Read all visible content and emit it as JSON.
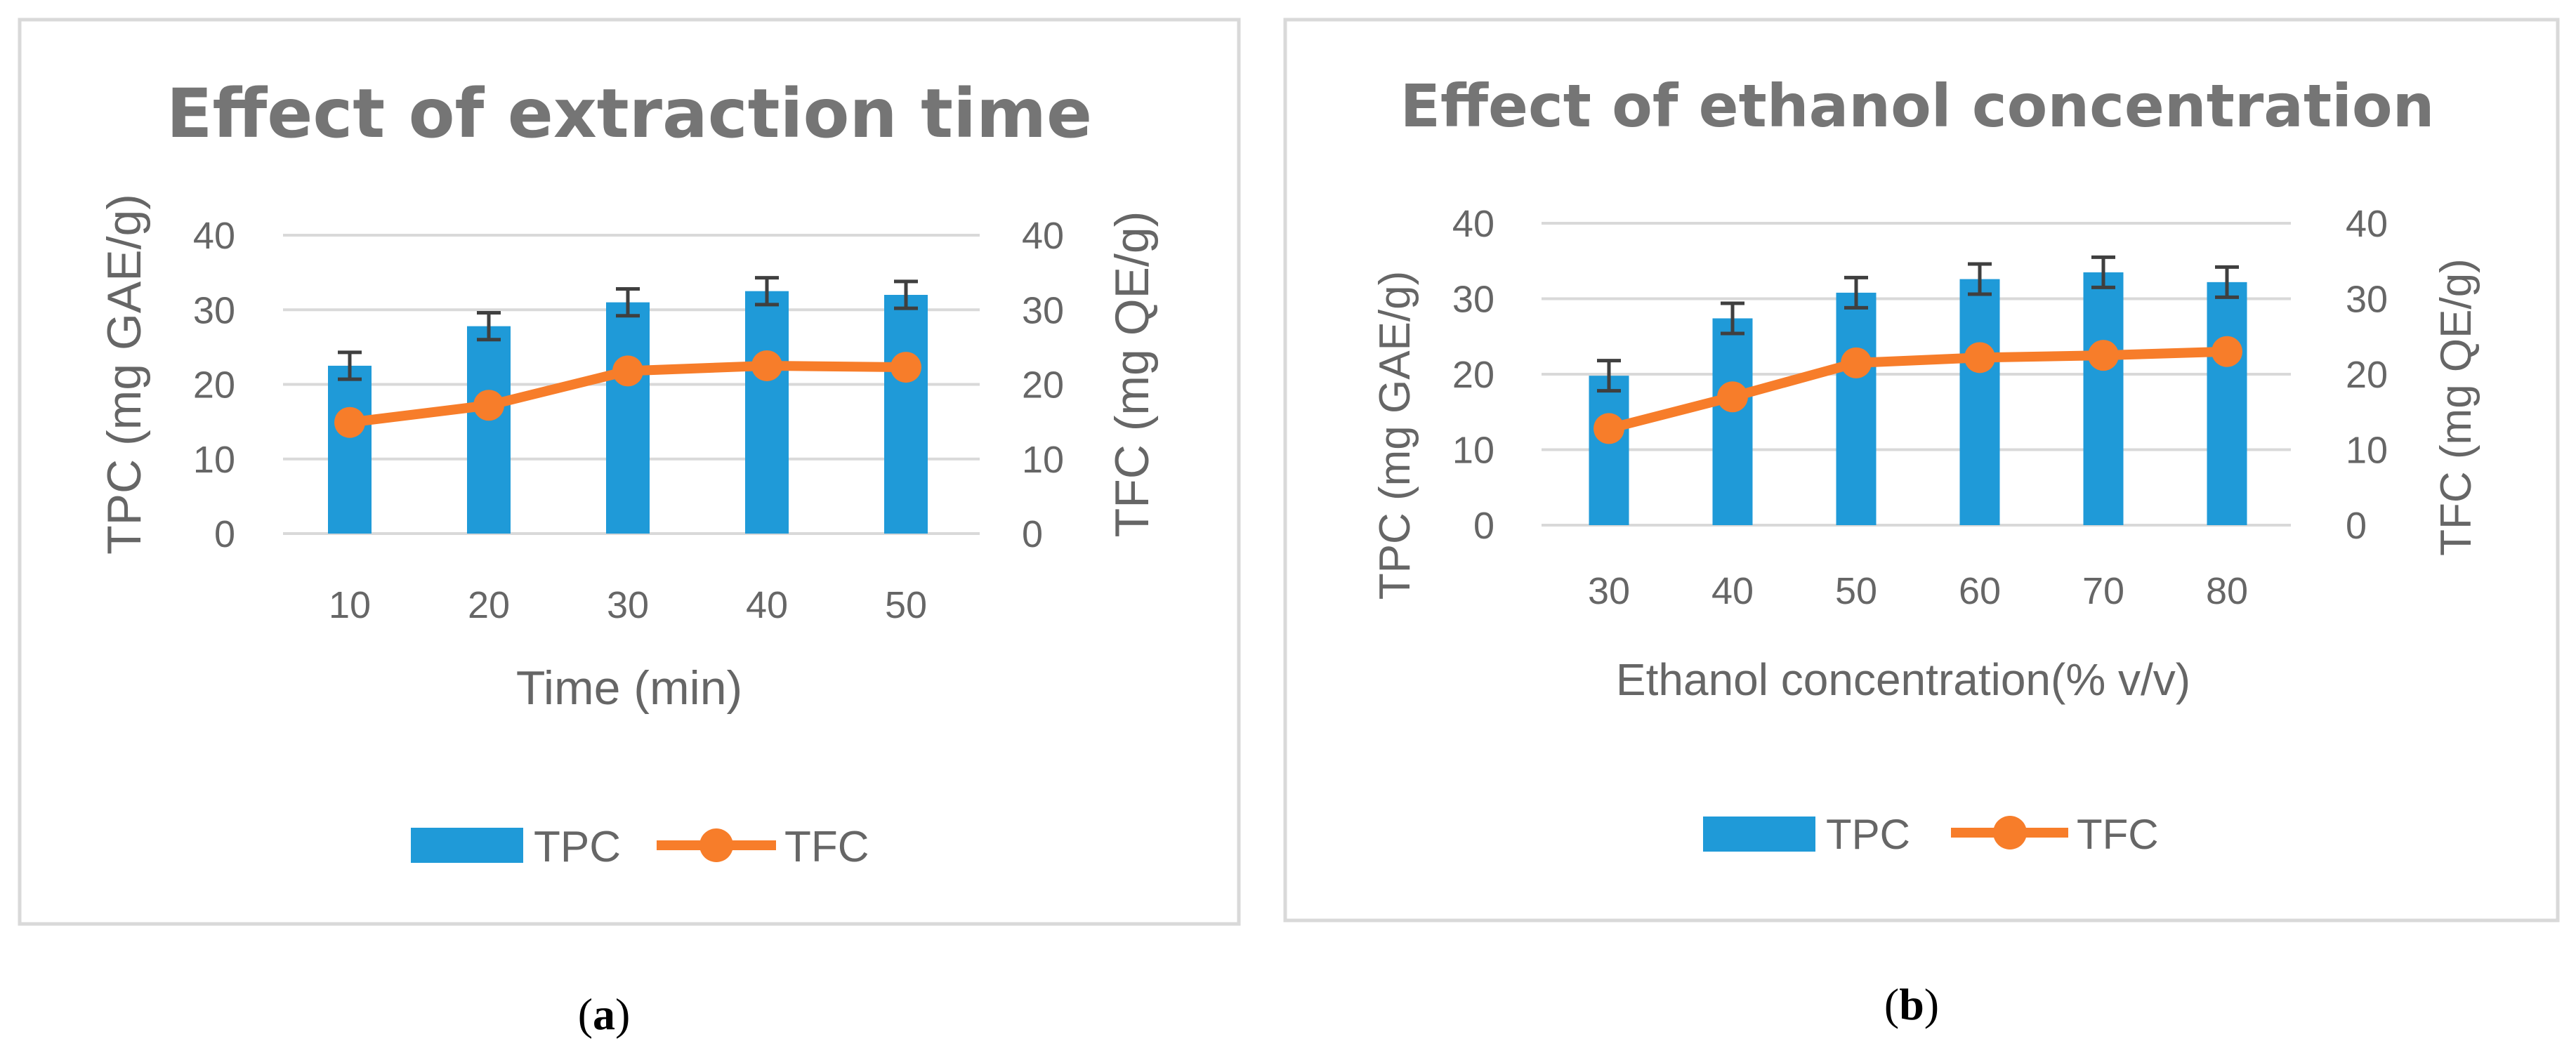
{
  "colors": {
    "bar": "#1f9ad8",
    "line": "#f77d2a",
    "grid": "#d9d9d9",
    "text": "#666666",
    "title": "#757575",
    "error": "#3f3f3f",
    "border": "#d9d9d9"
  },
  "chart_data": [
    {
      "type": "bar+line",
      "title": "Effect of extraction time",
      "xlabel": "Time (min)",
      "ylabel_left": "TPC (mg GAE/g)",
      "ylabel_right": "TFC (mg QE/g)",
      "categories": [
        "10",
        "20",
        "30",
        "40",
        "50"
      ],
      "ylim": [
        0,
        40
      ],
      "yticks": [
        "0",
        "10",
        "20",
        "30",
        "40"
      ],
      "series": [
        {
          "name": "TPC",
          "kind": "bar",
          "axis": "left",
          "values": [
            22.5,
            27.8,
            31.0,
            32.5,
            32.0
          ],
          "errors": [
            1.8,
            1.8,
            1.8,
            1.8,
            1.8
          ]
        },
        {
          "name": "TFC",
          "kind": "line",
          "axis": "right",
          "values": [
            14.9,
            17.2,
            21.8,
            22.5,
            22.3
          ]
        }
      ],
      "legend": [
        "TPC",
        "TFC"
      ],
      "legend_position": "bottom",
      "caption_paren_open": "(",
      "caption_letter": "a",
      "caption_paren_close": ")"
    },
    {
      "type": "bar+line",
      "title": "Effect of ethanol concentration",
      "xlabel": "Ethanol concentration(% v/v)",
      "ylabel_left": "TPC (mg GAE/g)",
      "ylabel_right": "TFC (mg QE/g)",
      "categories": [
        "30",
        "40",
        "50",
        "60",
        "70",
        "80"
      ],
      "ylim": [
        0,
        40
      ],
      "yticks": [
        "0",
        "10",
        "20",
        "30",
        "40"
      ],
      "series": [
        {
          "name": "TPC",
          "kind": "bar",
          "axis": "left",
          "values": [
            19.8,
            27.4,
            30.8,
            32.6,
            33.5,
            32.2
          ],
          "errors": [
            2.0,
            2.0,
            2.0,
            2.0,
            2.0,
            2.0
          ]
        },
        {
          "name": "TFC",
          "kind": "line",
          "axis": "right",
          "values": [
            12.8,
            17.0,
            21.5,
            22.2,
            22.5,
            23.0
          ]
        }
      ],
      "legend": [
        "TPC",
        "TFC"
      ],
      "legend_position": "bottom",
      "caption_paren_open": "(",
      "caption_letter": "b",
      "caption_paren_close": ")"
    }
  ]
}
